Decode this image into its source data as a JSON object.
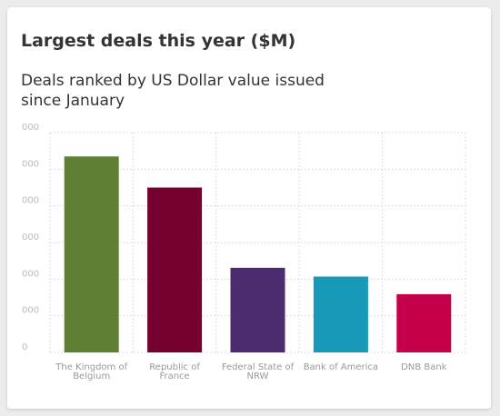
{
  "chart_data": {
    "type": "bar",
    "title": "Largest deals this year ($M)",
    "subtitle": "Deals ranked by US Dollar value issued since January",
    "categories": [
      "The Kingdom of Belgium",
      "Republic of France",
      "Federal State of NRW",
      "Bank of America",
      "DNB Bank"
    ],
    "values": [
      5350,
      4500,
      2310,
      2070,
      1590
    ],
    "colors": [
      "#5f7f33",
      "#76002f",
      "#4b2b6e",
      "#1899b8",
      "#c4004a"
    ],
    "ylim": [
      0,
      6000
    ],
    "yticks": [
      0,
      {
        "value": 1000,
        "label": "000"
      },
      {
        "value": 2000,
        "label": "000"
      },
      {
        "value": 3000,
        "label": "000"
      },
      {
        "value": 4000,
        "label": "000"
      },
      {
        "value": 5000,
        "label": "000"
      },
      {
        "value": 6000,
        "label": "000"
      }
    ],
    "grid": true
  }
}
